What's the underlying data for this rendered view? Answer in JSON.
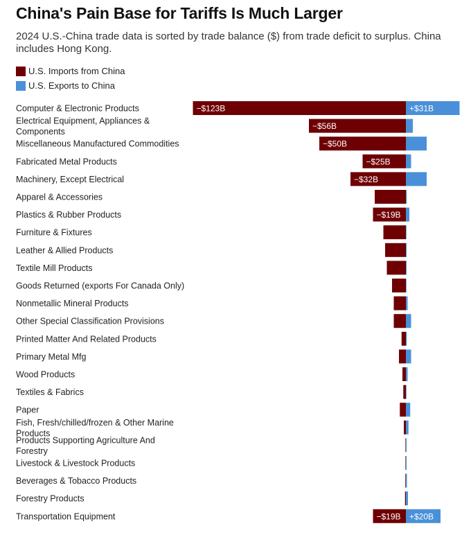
{
  "title": "China's Pain Base for Tariffs Is Much Larger",
  "subtitle": "2024 U.S.-China trade data is sorted by trade balance ($) from trade deficit to surplus. China includes Hong Kong.",
  "colors": {
    "imports": "#6e0003",
    "exports": "#4a90d9"
  },
  "chart_data": {
    "type": "bar",
    "orientation": "horizontal",
    "unit": "billion USD",
    "legend_placement": "top-left",
    "grid": false,
    "xlim": [
      -123,
      31
    ],
    "categories": [
      [
        "Computer & Electronic Products"
      ],
      [
        "Electrical Equipment, Appliances &",
        "Components"
      ],
      [
        "Miscellaneous Manufactured Commodities"
      ],
      [
        "Fabricated Metal Products"
      ],
      [
        "Machinery, Except Electrical"
      ],
      [
        "Apparel & Accessories"
      ],
      [
        "Plastics & Rubber Products"
      ],
      [
        "Furniture & Fixtures"
      ],
      [
        "Leather & Allied Products"
      ],
      [
        "Textile Mill Products"
      ],
      [
        "Goods Returned (exports For Canada Only)"
      ],
      [
        "Nonmetallic Mineral Products"
      ],
      [
        "Other Special Classification Provisions"
      ],
      [
        "Printed Matter And Related Products"
      ],
      [
        "Primary Metal Mfg"
      ],
      [
        "Wood Products"
      ],
      [
        "Textiles & Fabrics"
      ],
      [
        "Paper"
      ],
      [
        "Fish, Fresh/chilled/frozen & Other Marine",
        "Products"
      ],
      [
        "Products Supporting Agriculture And",
        "Forestry"
      ],
      [
        "Livestock & Livestock Products"
      ],
      [
        "Beverages & Tobacco Products"
      ],
      [
        "Forestry Products"
      ],
      [
        "Transportation Equipment"
      ]
    ],
    "series": [
      {
        "name": "U.S. Imports from China",
        "values": [
          -123,
          -56,
          -50,
          -25,
          -32,
          -18,
          -19,
          -13,
          -12,
          -11,
          -8,
          -7,
          -7,
          -2.5,
          -4,
          -2,
          -1.5,
          -3.5,
          -1.2,
          -0.2,
          -0.2,
          -0.3,
          -0.5,
          -19
        ],
        "labels": [
          "−$123B",
          "−$56B",
          "−$50B",
          "−$25B",
          "−$32B",
          "",
          "−$19B",
          "",
          "",
          "",
          "",
          "",
          "",
          "",
          "",
          "",
          "",
          "",
          "",
          "",
          "",
          "",
          "",
          "−$19B"
        ]
      },
      {
        "name": "U.S. Exports to China",
        "values": [
          31,
          4,
          12,
          3,
          12,
          0.5,
          2,
          0.3,
          0.4,
          0.4,
          0.3,
          1,
          3,
          0.5,
          3,
          1,
          0.3,
          2.5,
          1.5,
          0.4,
          0.4,
          0.6,
          1.2,
          20
        ],
        "labels": [
          "+$31B",
          "",
          "",
          "",
          "",
          "",
          "",
          "",
          "",
          "",
          "",
          "",
          "",
          "",
          "",
          "",
          "",
          "",
          "",
          "",
          "",
          "",
          "",
          "+$20B"
        ]
      }
    ]
  }
}
